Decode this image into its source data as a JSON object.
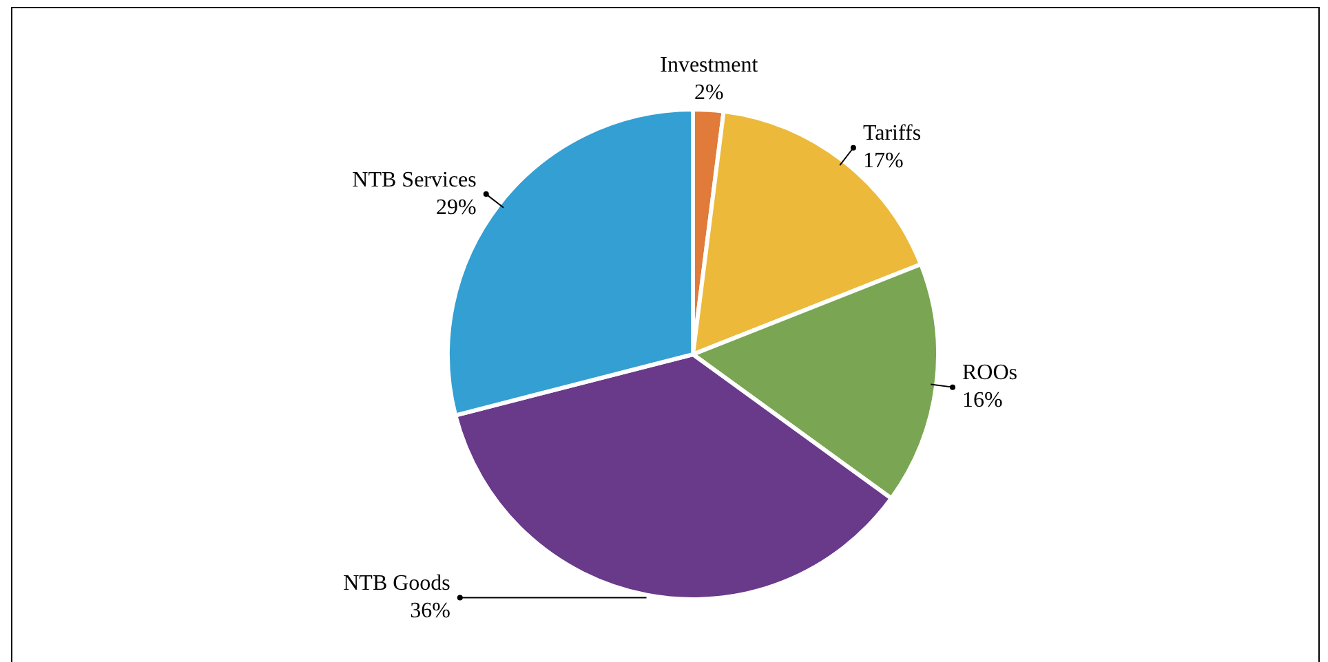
{
  "chart_data": {
    "type": "pie",
    "categories": [
      "Investment",
      "Tariffs",
      "ROOs",
      "NTB Goods",
      "NTB Services"
    ],
    "values": [
      2,
      17,
      16,
      36,
      29
    ],
    "value_labels": [
      "2%",
      "17%",
      "16%",
      "36%",
      "29%"
    ],
    "colors": [
      "#e07b39",
      "#ecb93b",
      "#7aa552",
      "#69398a",
      "#349fd2"
    ],
    "legend": false
  }
}
